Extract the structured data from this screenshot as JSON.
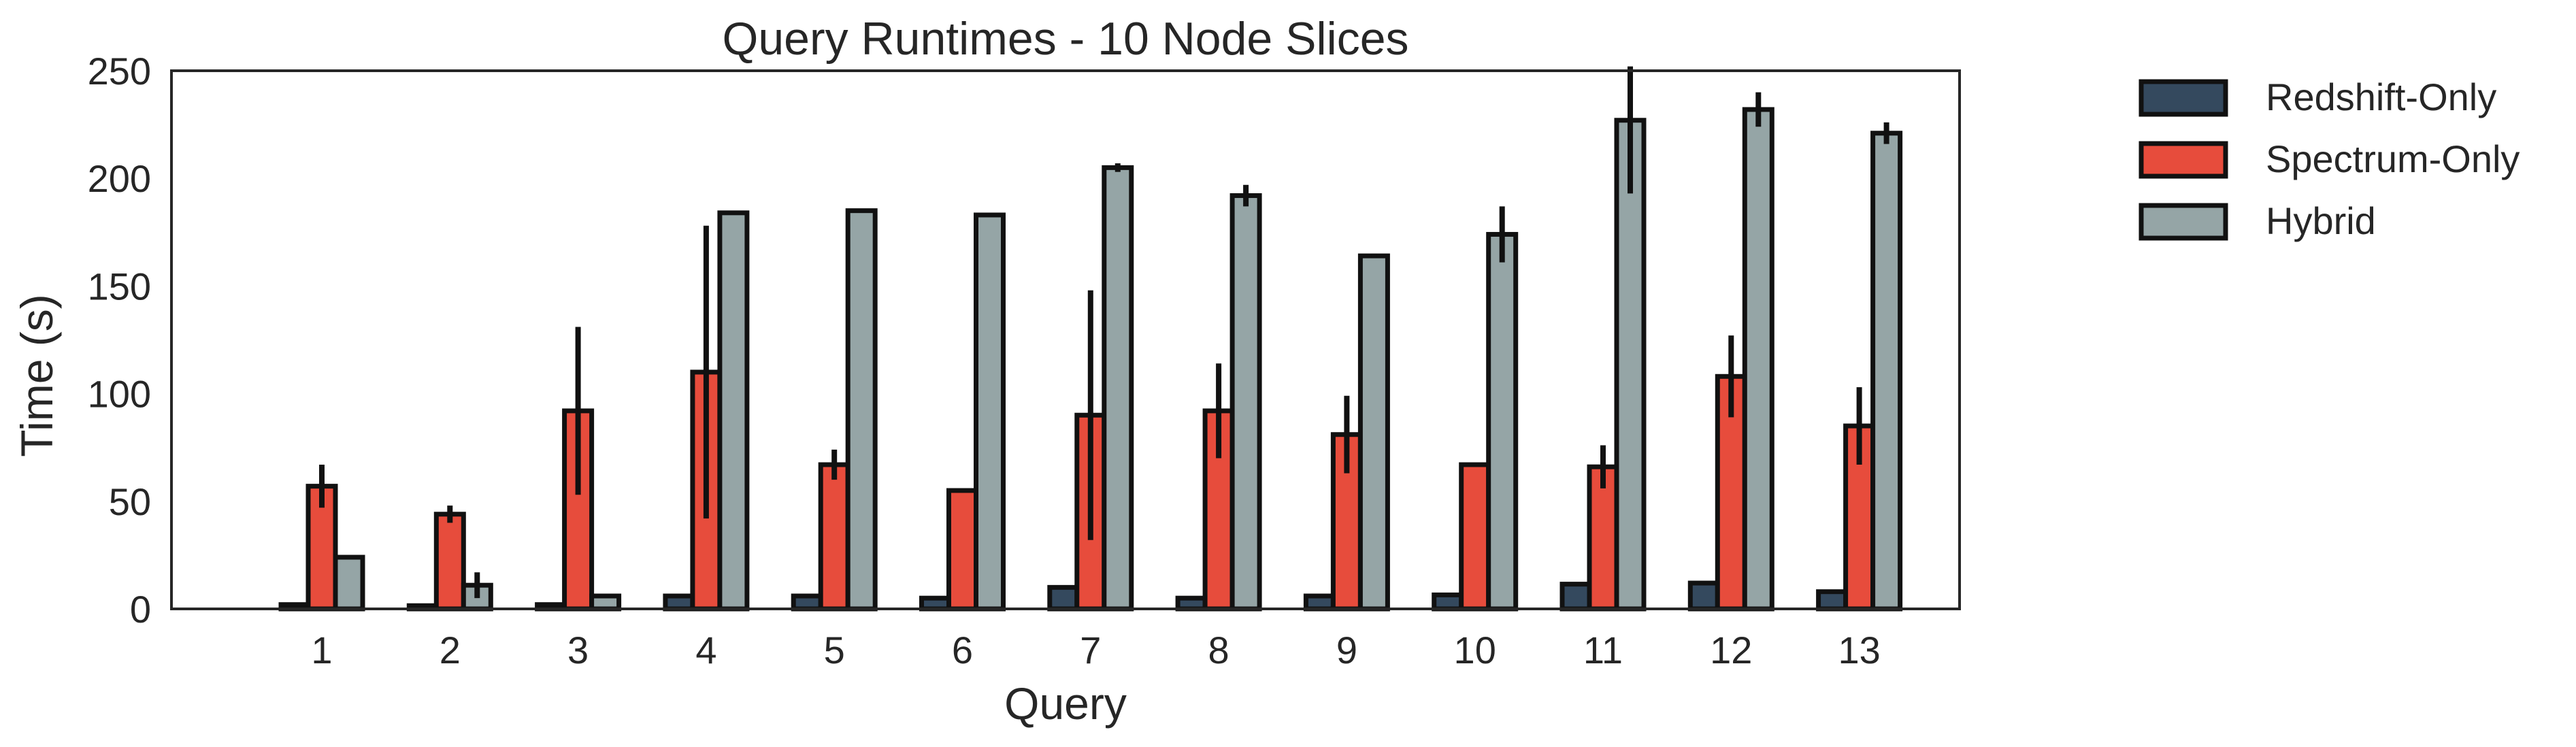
{
  "chart_data": {
    "type": "bar",
    "title": "Query Runtimes - 10 Node Slices",
    "xlabel": "Query",
    "ylabel": "Time (s)",
    "ylim": [
      0,
      250
    ],
    "yticks": [
      0,
      50,
      100,
      150,
      200,
      250
    ],
    "categories": [
      "1",
      "2",
      "3",
      "4",
      "5",
      "6",
      "7",
      "8",
      "9",
      "10",
      "11",
      "12",
      "13"
    ],
    "series": [
      {
        "name": "Redshift-Only",
        "color": "#34495e",
        "values": [
          2,
          1.5,
          2,
          6,
          6,
          5,
          10,
          5,
          6,
          6.5,
          11.5,
          12,
          8
        ],
        "errors": [
          0,
          0,
          0,
          0,
          0,
          0,
          0,
          0,
          0,
          0,
          0,
          0,
          0
        ]
      },
      {
        "name": "Spectrum-Only",
        "color": "#e74c3c",
        "values": [
          57,
          44,
          92,
          110,
          67,
          55,
          90,
          92,
          81,
          67,
          66,
          108,
          85
        ],
        "errors": [
          10,
          4,
          39,
          68,
          7,
          0,
          58,
          22,
          18,
          0,
          10,
          19,
          18
        ]
      },
      {
        "name": "Hybrid",
        "color": "#95a5a6",
        "values": [
          24,
          11,
          6,
          184,
          185,
          183,
          205,
          192,
          164,
          174,
          227,
          232,
          221
        ],
        "errors": [
          0,
          6,
          0,
          0,
          0,
          0,
          2,
          5,
          1,
          13,
          34,
          8,
          5
        ]
      }
    ],
    "grid": false,
    "legend_position": "outside-right"
  }
}
